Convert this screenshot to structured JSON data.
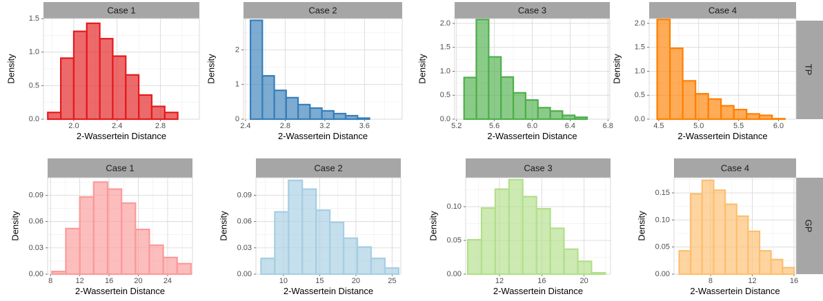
{
  "figure": {
    "row_labels": [
      "TP",
      "GP"
    ]
  },
  "chart_data": [
    {
      "type": "bar",
      "subtype": "histogram",
      "row": "TP",
      "title": "Case 1",
      "xlabel": "2-Wassertein Distance",
      "ylabel": "Density",
      "xlim": [
        1.72,
        3.16
      ],
      "ylim": [
        0,
        1.5
      ],
      "xticks": [
        2.0,
        2.4,
        2.8
      ],
      "xtick_labels": [
        "2.0",
        "2.4",
        "2.8"
      ],
      "yticks": [
        0,
        0.5,
        1.0,
        1.5
      ],
      "ytick_labels": [
        "0.0",
        "0.5",
        "1.0",
        "1.5"
      ],
      "bin_start": 1.76,
      "bin_width": 0.12,
      "values": [
        0.1,
        0.91,
        1.31,
        1.43,
        1.2,
        0.94,
        0.66,
        0.36,
        0.19,
        0.1
      ],
      "color": "#e41a1c",
      "fill_opacity": 0.65
    },
    {
      "type": "bar",
      "subtype": "histogram",
      "row": "TP",
      "title": "Case 2",
      "xlabel": "2-Wassertein Distance",
      "ylabel": "Density",
      "xlim": [
        2.38,
        3.98
      ],
      "ylim": [
        0,
        2.9
      ],
      "xticks": [
        2.4,
        2.8,
        3.2,
        3.6
      ],
      "xtick_labels": [
        "2.4",
        "2.8",
        "3.2",
        "3.6"
      ],
      "yticks": [
        0,
        1,
        2
      ],
      "ytick_labels": [
        "0",
        "1",
        "2"
      ],
      "bin_start": 2.45,
      "bin_width": 0.12,
      "values": [
        2.85,
        1.25,
        0.83,
        0.62,
        0.42,
        0.32,
        0.24,
        0.16,
        0.1,
        0.03
      ],
      "color": "#377eb8",
      "fill_opacity": 0.65
    },
    {
      "type": "bar",
      "subtype": "histogram",
      "row": "TP",
      "title": "Case 3",
      "xlabel": "2-Wassertein Distance",
      "ylabel": "Density",
      "xlim": [
        5.18,
        6.82
      ],
      "ylim": [
        0,
        2.1
      ],
      "xticks": [
        5.2,
        5.6,
        6.0,
        6.4,
        6.8
      ],
      "xtick_labels": [
        "5.2",
        "5.6",
        "6.0",
        "6.4",
        "6.8"
      ],
      "yticks": [
        0,
        0.5,
        1.0,
        1.5,
        2.0
      ],
      "ytick_labels": [
        "0.0",
        "0.5",
        "1.0",
        "1.5",
        "2.0"
      ],
      "bin_start": 5.28,
      "bin_width": 0.13,
      "values": [
        0.87,
        2.08,
        1.3,
        0.88,
        0.55,
        0.4,
        0.24,
        0.17,
        0.08,
        0.04
      ],
      "color": "#4daf4a",
      "fill_opacity": 0.65
    },
    {
      "type": "bar",
      "subtype": "histogram",
      "row": "TP",
      "title": "Case 4",
      "xlabel": "2-Wassertein Distance",
      "ylabel": "Density",
      "xlim": [
        4.38,
        6.22
      ],
      "ylim": [
        0,
        2.1
      ],
      "xticks": [
        4.5,
        5.0,
        5.5,
        6.0
      ],
      "xtick_labels": [
        "4.5",
        "5.0",
        "5.5",
        "6.0"
      ],
      "yticks": [
        0,
        0.5,
        1.0,
        1.5,
        2.0
      ],
      "ytick_labels": [
        "0.0",
        "0.5",
        "1.0",
        "1.5",
        "2.0"
      ],
      "bin_start": 4.48,
      "bin_width": 0.16,
      "values": [
        2.08,
        1.48,
        0.8,
        0.53,
        0.42,
        0.28,
        0.2,
        0.11,
        0.08,
        0.01
      ],
      "color": "#ff7f00",
      "fill_opacity": 0.65
    },
    {
      "type": "bar",
      "subtype": "histogram",
      "row": "GP",
      "title": "Case 1",
      "xlabel": "2-Wassertein Distance",
      "ylabel": "Density",
      "xlim": [
        7.6,
        27.4
      ],
      "ylim": [
        0,
        0.11
      ],
      "xticks": [
        8,
        12,
        16,
        20,
        24
      ],
      "xtick_labels": [
        "8",
        "12",
        "16",
        "20",
        "24"
      ],
      "yticks": [
        0,
        0.03,
        0.06,
        0.09
      ],
      "ytick_labels": [
        "0.00",
        "0.03",
        "0.06",
        "0.09"
      ],
      "bin_start": 8.2,
      "bin_width": 1.9,
      "values": [
        0.003,
        0.052,
        0.088,
        0.105,
        0.097,
        0.081,
        0.051,
        0.033,
        0.019,
        0.012
      ],
      "color": "#fb9a99",
      "fill_opacity": 0.65
    },
    {
      "type": "bar",
      "subtype": "histogram",
      "row": "GP",
      "title": "Case 2",
      "xlabel": "2-Wassertein Distance",
      "ylabel": "Density",
      "xlim": [
        6.2,
        26.2
      ],
      "ylim": [
        0,
        0.11
      ],
      "xticks": [
        10,
        15,
        20,
        25
      ],
      "xtick_labels": [
        "10",
        "15",
        "20",
        "25"
      ],
      "yticks": [
        0,
        0.03,
        0.06,
        0.09
      ],
      "ytick_labels": [
        "0.00",
        "0.03",
        "0.06",
        "0.09"
      ],
      "bin_start": 6.9,
      "bin_width": 1.9,
      "values": [
        0.018,
        0.071,
        0.107,
        0.097,
        0.073,
        0.059,
        0.041,
        0.031,
        0.018,
        0.007
      ],
      "color": "#a6cee3",
      "fill_opacity": 0.65
    },
    {
      "type": "bar",
      "subtype": "histogram",
      "row": "GP",
      "title": "Case 3",
      "xlabel": "2-Wassertein Distance",
      "ylabel": "Density",
      "xlim": [
        8.8,
        22.5
      ],
      "ylim": [
        0,
        0.143
      ],
      "xticks": [
        8,
        12,
        16,
        20
      ],
      "xtick_labels": [
        "8",
        "12",
        "16",
        "20"
      ],
      "yticks": [
        0,
        0.05,
        0.1
      ],
      "ytick_labels": [
        "0.00",
        "0.05",
        "0.10"
      ],
      "bin_start": 9.0,
      "bin_width": 1.3,
      "values": [
        0.051,
        0.098,
        0.126,
        0.14,
        0.115,
        0.097,
        0.068,
        0.037,
        0.019,
        0.002
      ],
      "color": "#b2df8a",
      "fill_opacity": 0.65
    },
    {
      "type": "bar",
      "subtype": "histogram",
      "row": "GP",
      "title": "Case 4",
      "xlabel": "2-Wassertein Distance",
      "ylabel": "Density",
      "xlim": [
        4.5,
        16.2
      ],
      "ylim": [
        0,
        0.178
      ],
      "xticks": [
        8,
        12,
        16
      ],
      "xtick_labels": [
        "8",
        "12",
        "16"
      ],
      "yticks": [
        0,
        0.05,
        0.1,
        0.15
      ],
      "ytick_labels": [
        "0.00",
        "0.05",
        "0.10",
        "0.15"
      ],
      "bin_start": 5.0,
      "bin_width": 1.1,
      "values": [
        0.043,
        0.148,
        0.173,
        0.155,
        0.129,
        0.107,
        0.079,
        0.043,
        0.027,
        0.012
      ],
      "color": "#fdbf6f",
      "fill_opacity": 0.65
    }
  ]
}
